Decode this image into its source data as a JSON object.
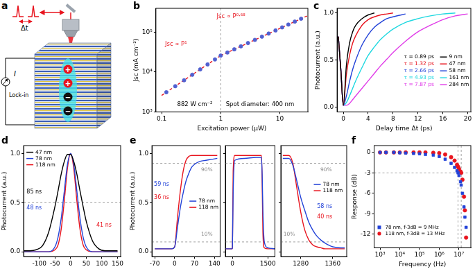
{
  "schematic": {
    "panel": "a",
    "type": "diagram",
    "labels": {
      "delay": "Δt",
      "current": "I",
      "detector": "Lock-in"
    },
    "charges": [
      {
        "sign": "+",
        "color": "#e8141e"
      },
      {
        "sign": "+",
        "color": "#e8141e"
      },
      {
        "sign": "−",
        "color": "#111111"
      },
      {
        "sign": "−",
        "color": "#111111"
      }
    ]
  },
  "chart_data": [
    {
      "panel": "b",
      "type": "scatter",
      "xlabel": "Excitation power (μW)",
      "ylabel": "Jsc (mA cm⁻²)",
      "log": true,
      "grid": false,
      "xlim": [
        0.08,
        30
      ],
      "xticks": [
        0.1,
        1,
        10
      ],
      "ylim": [
        1000,
        400000
      ],
      "yticks": [
        {
          "value": 1000,
          "label": "10³"
        },
        {
          "value": 10000,
          "label": "10⁴"
        },
        {
          "value": 100000,
          "label": "10⁵"
        }
      ],
      "reference_lines": {
        "x": [
          1
        ]
      },
      "annotations": [
        {
          "text": "Jsc ∝ P¹",
          "color": "#e8141e"
        },
        {
          "text": "Jsc ∝ P⁰·⁶⁸",
          "color": "#e8141e"
        },
        {
          "text": "882 W cm⁻²",
          "color": "#000000"
        },
        {
          "text": "Spot diameter: 400 nm",
          "color": "#000000"
        }
      ],
      "series": [
        {
          "type": "scatter",
          "color": "#5060d0",
          "marker": "circle",
          "x": [
            0.12,
            0.17,
            0.24,
            0.33,
            0.45,
            0.6,
            0.8,
            1.0,
            1.3,
            1.7,
            2.2,
            2.9,
            3.8,
            5,
            6.5,
            8.5,
            11,
            14,
            18,
            23
          ],
          "values": [
            3120,
            4420,
            6240,
            8580,
            11700,
            15600,
            20800,
            26000,
            31070,
            37300,
            44450,
            53630,
            64450,
            77670,
            92840,
            111400,
            132800,
            156400,
            185600,
            219300
          ]
        },
        {
          "type": "line",
          "color": "#e8141e",
          "line_style": "dashed",
          "x": [
            0.1,
            1
          ],
          "values": [
            2600,
            26000
          ]
        },
        {
          "type": "line",
          "color": "#e8141e",
          "line_style": "dashed",
          "x": [
            1,
            30
          ],
          "values": [
            26000,
            262700
          ]
        }
      ]
    },
    {
      "panel": "c",
      "type": "line",
      "xlabel": "Delay time Δt (ps)",
      "ylabel": "Photocurrent (a.u.)",
      "grid": false,
      "legend": "lower right",
      "xlim": [
        -1,
        20.5
      ],
      "xticks": [
        0,
        4,
        8,
        12,
        16,
        20
      ],
      "ylim": [
        -0.05,
        1.05
      ],
      "yticks": [
        {
          "value": 0,
          "label": "0.0"
        },
        {
          "value": 0.5,
          "label": "0.5"
        },
        {
          "value": 1,
          "label": "1.0"
        }
      ],
      "x": [
        -0.8,
        -0.4,
        0,
        0.5,
        1,
        1.5,
        2,
        3,
        4,
        5,
        6,
        7,
        8,
        10,
        12,
        14,
        16,
        18,
        20
      ],
      "series": [
        {
          "name": "9 nm",
          "annotation": "τ = 0.89 ps",
          "color": "#000000",
          "values": [
            0.75,
            0.4,
            0.02,
            0.45,
            0.68,
            0.8,
            0.87,
            0.94,
            0.98,
            1.0,
            null,
            null,
            null,
            null,
            null,
            null,
            null,
            null,
            null
          ]
        },
        {
          "name": "47 nm",
          "annotation": "τ = 1.32 ps",
          "color": "#e8141e",
          "values": [
            0.75,
            0.4,
            0.02,
            0.35,
            0.55,
            0.68,
            0.76,
            0.87,
            0.93,
            0.96,
            0.98,
            0.99,
            1.0,
            null,
            null,
            null,
            null,
            null,
            null
          ]
        },
        {
          "name": "58 nm",
          "annotation": "τ = 2.66 ps",
          "color": "#2343d8",
          "values": [
            0.75,
            0.4,
            0.02,
            0.12,
            0.27,
            0.4,
            0.5,
            0.66,
            0.77,
            0.85,
            0.9,
            0.94,
            0.96,
            0.99,
            null,
            null,
            null,
            null,
            null
          ]
        },
        {
          "name": "161 nm",
          "annotation": "τ = 4.93 ps",
          "color": "#1fd8e0",
          "values": [
            0.75,
            0.4,
            0.02,
            0.05,
            0.12,
            0.2,
            0.28,
            0.42,
            0.55,
            0.64,
            0.72,
            0.78,
            0.83,
            0.9,
            0.94,
            0.97,
            0.99,
            1.0,
            null
          ]
        },
        {
          "name": "284 nm",
          "annotation": "τ = 7.87 ps",
          "color": "#e03ce8",
          "values": [
            0.75,
            0.4,
            0.02,
            0.02,
            0.04,
            0.08,
            0.12,
            0.2,
            0.28,
            0.36,
            0.44,
            0.51,
            0.58,
            0.7,
            0.8,
            0.87,
            0.93,
            0.97,
            0.99
          ]
        }
      ]
    },
    {
      "panel": "d",
      "type": "line",
      "ylabel": "Photocurrent (a.u.)",
      "grid": false,
      "legend": "upper left",
      "xlim": [
        -150,
        160
      ],
      "xticks": [
        -100,
        -50,
        0,
        50,
        100,
        150
      ],
      "ylim": [
        -0.05,
        1.08
      ],
      "yticks": [
        {
          "value": 0,
          "label": "0.0"
        },
        {
          "value": 0.5,
          "label": "0.5"
        },
        {
          "value": 1,
          "label": "1.0"
        }
      ],
      "reference_lines": {
        "y": [
          0.5
        ]
      },
      "annotations": [
        {
          "text": "85 ns",
          "color": "#000000"
        },
        {
          "text": "48 ns",
          "color": "#2343d8"
        },
        {
          "text": "41 ns",
          "color": "#e8141e"
        }
      ],
      "x": [
        -150,
        -130,
        -110,
        -90,
        -70,
        -50,
        -40,
        -30,
        -20,
        -10,
        0,
        10,
        20,
        30,
        40,
        50,
        70,
        90,
        110,
        130,
        150
      ],
      "series": [
        {
          "name": "47 nm",
          "color": "#000000",
          "values": [
            0.01,
            0.01,
            0.02,
            0.06,
            0.2,
            0.46,
            0.62,
            0.79,
            0.92,
            0.99,
            0.99,
            0.92,
            0.79,
            0.62,
            0.46,
            0.31,
            0.11,
            0.03,
            0.01,
            0.01,
            0.01
          ]
        },
        {
          "name": "78 nm",
          "color": "#2343d8",
          "values": [
            0,
            0,
            0,
            0,
            0,
            0.05,
            0.15,
            0.34,
            0.62,
            0.89,
            1,
            0.89,
            0.62,
            0.34,
            0.15,
            0.05,
            0,
            0,
            0,
            0,
            0
          ]
        },
        {
          "name": "118 nm",
          "color": "#e8141e",
          "values": [
            0,
            0,
            0,
            0,
            0,
            0.02,
            0.07,
            0.23,
            0.52,
            0.85,
            1,
            0.85,
            0.52,
            0.23,
            0.07,
            0.02,
            0,
            0,
            0,
            0,
            0
          ]
        }
      ]
    },
    {
      "panel": "e",
      "type": "line",
      "ylabel": "Photocurrent (a.u.)",
      "grid": false,
      "ylim": [
        -0.05,
        1.08
      ],
      "yticks": [
        {
          "value": 0,
          "label": "0.0"
        },
        {
          "value": 0.5,
          "label": "0.5"
        },
        {
          "value": 1,
          "label": "1.0"
        }
      ],
      "reference_lines": {
        "y": [
          {
            "value": 0.9,
            "label": "90%"
          },
          {
            "value": 0.1,
            "label": "10%"
          }
        ]
      },
      "subplots": [
        {
          "legend": "right",
          "xlim": [
            -80,
            160
          ],
          "xticks": [
            -70,
            0,
            70,
            140
          ],
          "annotations": [
            {
              "text": "59 ns",
              "color": "#2343d8"
            },
            {
              "text": "36 ns",
              "color": "#e8141e"
            }
          ],
          "x": [
            -70,
            -50,
            -30,
            -10,
            0,
            10,
            20,
            30,
            40,
            50,
            60,
            70,
            90,
            110,
            130,
            150
          ],
          "series": [
            {
              "name": "78 nm",
              "color": "#2343d8",
              "values": [
                0.03,
                0.03,
                0.03,
                0.03,
                0.05,
                0.25,
                0.45,
                0.6,
                0.72,
                0.8,
                0.86,
                0.89,
                0.92,
                0.93,
                0.94,
                0.95
              ]
            },
            {
              "name": "118 nm",
              "color": "#e8141e",
              "values": [
                0.03,
                0.03,
                0.03,
                0.03,
                0.05,
                0.35,
                0.62,
                0.82,
                0.93,
                0.97,
                0.98,
                0.98,
                0.98,
                0.98,
                0.98,
                0.98
              ]
            }
          ]
        },
        {
          "xlim": [
            -300,
            1800
          ],
          "xticks": [
            0,
            1500
          ],
          "x": [
            -300,
            -10,
            0,
            30,
            100,
            500,
            1000,
            1230,
            1260,
            1290,
            1350,
            1500,
            1800
          ],
          "series": [
            {
              "name": "78 nm",
              "color": "#2343d8",
              "values": [
                0.03,
                0.03,
                0.05,
                0.6,
                0.93,
                0.95,
                0.96,
                0.96,
                0.78,
                0.42,
                0.1,
                0.04,
                0.03
              ]
            },
            {
              "name": "118 nm",
              "color": "#e8141e",
              "values": [
                0.03,
                0.03,
                0.05,
                0.82,
                0.98,
                0.98,
                0.98,
                0.98,
                0.7,
                0.2,
                0.04,
                0.03,
                0.03
              ]
            }
          ]
        },
        {
          "legend": "right",
          "xlim": [
            1230,
            1395
          ],
          "xticks": [
            1280,
            1360
          ],
          "annotations": [
            {
              "text": "58 ns",
              "color": "#2343d8"
            },
            {
              "text": "40 ns",
              "color": "#e8141e"
            }
          ],
          "x": [
            1235,
            1240,
            1250,
            1260,
            1270,
            1280,
            1290,
            1300,
            1310,
            1320,
            1330,
            1340,
            1360,
            1380,
            1390
          ],
          "series": [
            {
              "name": "78 nm",
              "color": "#2343d8",
              "values": [
                0.95,
                0.95,
                0.95,
                0.88,
                0.72,
                0.55,
                0.42,
                0.3,
                0.22,
                0.16,
                0.12,
                0.09,
                0.05,
                0.04,
                0.04
              ]
            },
            {
              "name": "118 nm",
              "color": "#e8141e",
              "values": [
                0.98,
                0.98,
                0.98,
                0.9,
                0.65,
                0.4,
                0.22,
                0.12,
                0.07,
                0.05,
                0.04,
                0.03,
                0.03,
                0.03,
                0.03
              ]
            }
          ]
        }
      ]
    },
    {
      "panel": "f",
      "type": "scatter",
      "xlabel": "Frequency (Hz)",
      "ylabel": "Response (dB)",
      "log": "x",
      "grid": false,
      "legend": "lower left",
      "xlim": [
        500,
        40000000
      ],
      "xticks": [
        {
          "value": 1000,
          "label": "10³"
        },
        {
          "value": 10000,
          "label": "10⁴"
        },
        {
          "value": 100000,
          "label": "10⁵"
        },
        {
          "value": 1000000,
          "label": "10⁶"
        },
        {
          "value": 10000000,
          "label": "10⁷"
        }
      ],
      "ylim": [
        -14,
        1
      ],
      "yticks": [
        -12,
        -9,
        -6,
        -3,
        0
      ],
      "reference_lines": {
        "x": [
          9000000,
          13000000
        ],
        "y": [
          -3
        ]
      },
      "x": [
        1000,
        2000,
        5000,
        10000,
        20000,
        50000,
        100000,
        200000,
        500000,
        1000000,
        2000000,
        4000000,
        6000000,
        8000000,
        9000000,
        10000000,
        12000000,
        13000000,
        15000000,
        18000000,
        20000000,
        23000000
      ],
      "series": [
        {
          "name": "78 nm, f-3dB = 9 MHz",
          "color": "#2343d8",
          "marker": "square",
          "values": [
            0,
            0,
            0,
            -0.05,
            -0.1,
            -0.15,
            -0.2,
            -0.3,
            -0.4,
            -0.6,
            -1.0,
            -1.6,
            -2.2,
            -2.7,
            -3.0,
            -3.4,
            -4.3,
            -4.8,
            -6.0,
            -8.0,
            -9.5,
            -11
          ]
        },
        {
          "name": "118 nm, f-3dB = 13 MHz",
          "color": "#e8141e",
          "marker": "circle",
          "values": [
            0,
            0,
            0,
            0,
            0,
            0,
            0,
            0,
            -0.05,
            -0.1,
            -0.3,
            -0.7,
            -1.2,
            -1.8,
            -2.1,
            -2.4,
            -2.8,
            -3.0,
            -4.0,
            -6.5,
            -8.5,
            -12.5
          ]
        }
      ]
    }
  ]
}
